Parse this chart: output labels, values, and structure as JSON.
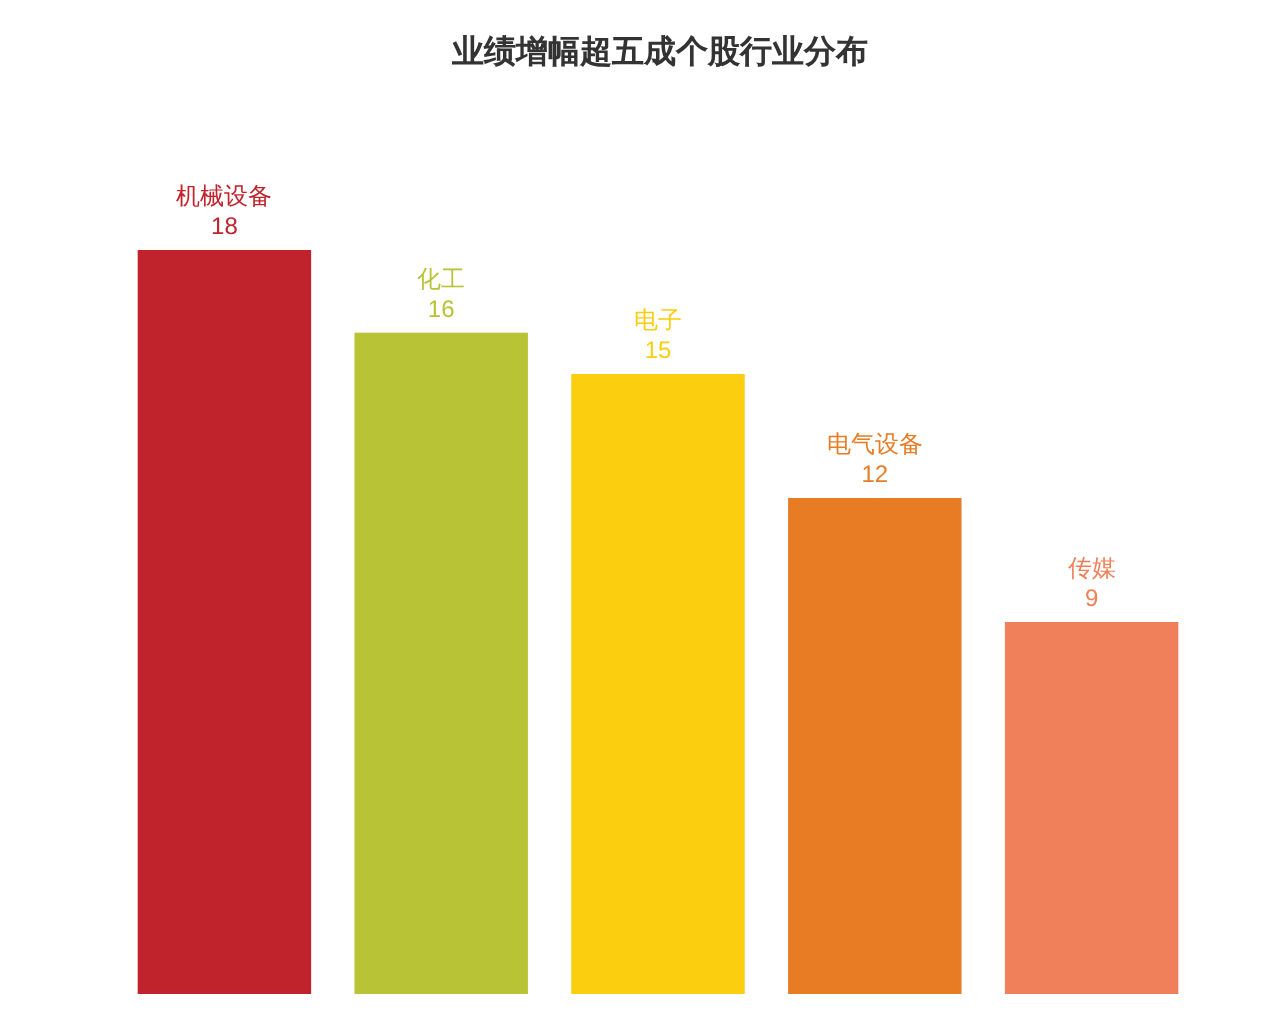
{
  "chart_data": {
    "type": "bar",
    "title": "业绩增幅超五成个股行业分布",
    "categories": [
      "机械设备",
      "化工",
      "电子",
      "电气设备",
      "传媒"
    ],
    "values": [
      18,
      16,
      15,
      12,
      9
    ],
    "colors": [
      "#c0232c",
      "#b8c336",
      "#fbce10",
      "#e87c25",
      "#f0805a"
    ],
    "data_labels": true
  }
}
